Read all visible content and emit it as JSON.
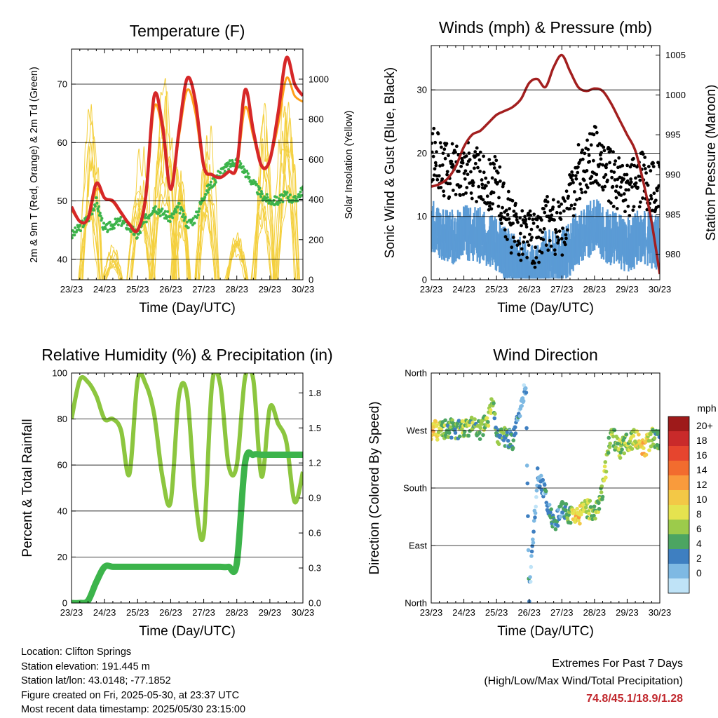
{
  "chart_data": [
    {
      "type": "line",
      "title": "Temperature (F)",
      "xlabel": "Time (Day/UTC)",
      "ylabel": "2m & 9m T (Red, Orange) & 2m Td (Green)",
      "y2label": "Solar Insolation (Yellow)",
      "xticks": [
        "23/23",
        "24/23",
        "25/23",
        "26/23",
        "27/23",
        "28/23",
        "29/23",
        "30/23"
      ],
      "x": [
        0,
        0.25,
        0.5,
        0.75,
        1,
        1.25,
        1.5,
        1.75,
        2,
        2.25,
        2.5,
        2.75,
        3,
        3.25,
        3.5,
        3.75,
        4,
        4.25,
        4.5,
        4.75,
        5,
        5.25,
        5.5,
        5.75,
        6,
        6.25,
        6.5,
        6.75,
        7
      ],
      "ylim": [
        36.5,
        76
      ],
      "yticks": [
        40,
        50,
        60,
        70
      ],
      "y2lim": [
        0,
        1150
      ],
      "y2ticks": [
        0,
        200,
        400,
        600,
        800,
        1000
      ],
      "grid": true,
      "series": [
        {
          "name": "2m T",
          "color": "#d62728",
          "values": [
            49,
            46.5,
            47,
            53,
            50.5,
            50,
            48,
            46,
            45,
            51,
            68,
            63,
            52,
            62,
            71,
            67,
            56,
            54.5,
            54,
            55,
            56,
            69,
            62,
            56,
            57,
            65,
            74.5,
            70,
            68
          ]
        },
        {
          "name": "9m T",
          "color": "#ff9f1a",
          "values": [
            48.5,
            46.5,
            46.8,
            52,
            50.5,
            49.8,
            47.8,
            46.2,
            45,
            50.5,
            66,
            62,
            52,
            61,
            69,
            65,
            55.5,
            54.5,
            54,
            55,
            55.5,
            66,
            61,
            56,
            57,
            63,
            71,
            68,
            67
          ]
        },
        {
          "name": "2m Td",
          "color": "#3cb44b",
          "values": [
            44,
            45.5,
            47,
            50,
            45,
            46,
            46.5,
            45.5,
            44,
            47,
            49,
            48,
            47,
            49,
            46,
            47,
            51,
            53,
            55,
            56,
            57,
            55,
            53,
            51,
            50,
            50,
            51,
            50,
            52
          ]
        },
        {
          "name": "Solar Insolation",
          "color": "#f4d03f",
          "axis": "right",
          "days": [
            [
              0,
              60,
              0
            ],
            [
              0.57,
              1040,
              0.6
            ],
            [
              1.25,
              200,
              0.5
            ],
            [
              2.1,
              900,
              0.7
            ],
            [
              2.8,
              1060,
              0.75
            ],
            [
              3.3,
              700,
              0.5
            ],
            [
              4.1,
              850,
              0.6
            ],
            [
              5.0,
              250,
              0.6
            ],
            [
              5.8,
              1000,
              0.6
            ],
            [
              6.5,
              1000,
              0.65
            ]
          ]
        }
      ]
    },
    {
      "type": "scatter",
      "title": "Winds (mph) & Pressure (mb)",
      "xlabel": "Time (Day/UTC)",
      "ylabel": "Sonic Wind & Gust (Blue, Black)",
      "y2label": "Station Pressure (Maroon)",
      "xticks": [
        "23/23",
        "24/23",
        "25/23",
        "26/23",
        "27/23",
        "28/23",
        "29/23",
        "30/23"
      ],
      "ylim": [
        0,
        37
      ],
      "yticks": [
        0,
        10,
        20,
        30
      ],
      "y2lim": [
        976.8,
        1006.2
      ],
      "y2ticks": [
        980,
        985,
        990,
        995,
        1000,
        1005
      ],
      "grid": true,
      "series": [
        {
          "name": "Wind",
          "color": "#5b9bd5",
          "x": [
            0,
            0.5,
            1,
            1.5,
            2,
            2.5,
            3,
            3.25,
            3.5,
            4,
            4.5,
            5,
            5.5,
            6,
            6.5,
            7
          ],
          "values": [
            10,
            8,
            9,
            8.5,
            7,
            4.5,
            3,
            2.5,
            5,
            5,
            8,
            10,
            8,
            7,
            8.5,
            7
          ]
        },
        {
          "name": "Gust",
          "color": "#000000",
          "x": [
            0,
            0.5,
            1,
            1.5,
            2,
            2.5,
            3,
            3.25,
            3.5,
            4,
            4.5,
            5,
            5.5,
            6,
            6.5,
            7
          ],
          "values": [
            20,
            17,
            18,
            16,
            15,
            8,
            7,
            6,
            9,
            8,
            17,
            20,
            16,
            14,
            16,
            14
          ]
        },
        {
          "name": "Pressure",
          "color": "#a31f1f",
          "axis": "right",
          "x": [
            0,
            0.25,
            0.5,
            0.75,
            1,
            1.25,
            1.5,
            1.75,
            2,
            2.25,
            2.5,
            2.75,
            3,
            3.25,
            3.5,
            3.75,
            4,
            4.25,
            4.5,
            4.75,
            5,
            5.25,
            5.5,
            5.75,
            6,
            6.25,
            6.5,
            6.75,
            7
          ],
          "values": [
            988.5,
            988.8,
            989.5,
            991,
            993.5,
            995,
            995.5,
            996.5,
            997.5,
            998,
            998.5,
            999.5,
            1001.5,
            1002,
            1001,
            1003.5,
            1005,
            1003,
            1001,
            1000.5,
            1000.8,
            1000.5,
            999,
            997,
            995,
            993,
            989,
            984,
            977.5
          ]
        }
      ]
    },
    {
      "type": "line",
      "title": "Relative Humidity (%) & Precipitation (in)",
      "xlabel": "Time (Day/UTC)",
      "ylabel": "Percent & Total Rainfall",
      "xticks": [
        "23/23",
        "24/23",
        "25/23",
        "26/23",
        "27/23",
        "28/23",
        "29/23",
        "30/23"
      ],
      "x": [
        0,
        0.25,
        0.5,
        0.75,
        1,
        1.25,
        1.5,
        1.75,
        2,
        2.25,
        2.5,
        2.75,
        3,
        3.25,
        3.5,
        3.75,
        4,
        4.25,
        4.5,
        4.75,
        5,
        5.25,
        5.5,
        5.75,
        6,
        6.25,
        6.5,
        6.75,
        7
      ],
      "ylim": [
        0,
        100
      ],
      "yticks": [
        0,
        20,
        40,
        60,
        80,
        100
      ],
      "y2lim": [
        0,
        1.97
      ],
      "y2ticks": [
        0,
        0.3,
        0.6,
        0.9,
        1.2,
        1.5,
        1.8
      ],
      "grid": true,
      "series": [
        {
          "name": "Relative Humidity",
          "color": "#8cc63f",
          "values": [
            80,
            97,
            96,
            90,
            80,
            80,
            75,
            56,
            97,
            95,
            82,
            55,
            44,
            90,
            90,
            45,
            30,
            95,
            95,
            60,
            60,
            98,
            97,
            55,
            85,
            78,
            70,
            44,
            57
          ]
        },
        {
          "name": "Total Precipitation",
          "color": "#3cb44b",
          "axis": "right",
          "values": [
            0,
            0,
            0.02,
            0.18,
            0.31,
            0.31,
            0.31,
            0.31,
            0.31,
            0.31,
            0.31,
            0.31,
            0.31,
            0.31,
            0.31,
            0.31,
            0.31,
            0.31,
            0.31,
            0.31,
            0.34,
            1.2,
            1.27,
            1.27,
            1.27,
            1.27,
            1.27,
            1.27,
            1.27
          ]
        }
      ]
    },
    {
      "type": "scatter",
      "title": "Wind Direction",
      "xlabel": "Time (Day/UTC)",
      "ylabel": "Direction (Colored By Speed)",
      "xticks": [
        "23/23",
        "24/23",
        "25/23",
        "26/23",
        "27/23",
        "28/23",
        "29/23",
        "30/23"
      ],
      "yticks": [
        "North",
        "East",
        "South",
        "West",
        "North"
      ],
      "ylim": [
        0,
        360
      ],
      "grid": true,
      "x": [
        0,
        0.25,
        0.5,
        0.75,
        1,
        1.25,
        1.5,
        1.75,
        1.9,
        2,
        2.25,
        2.5,
        2.75,
        2.9,
        3,
        3.25,
        3.5,
        3.75,
        4,
        4.25,
        4.5,
        4.75,
        5,
        5.25,
        5.5,
        5.75,
        6,
        6.25,
        6.5,
        6.75,
        7
      ],
      "values": [
        270,
        270,
        275,
        272,
        272,
        278,
        270,
        285,
        320,
        260,
        260,
        255,
        300,
        345,
        10,
        200,
        170,
        120,
        145,
        140,
        135,
        150,
        140,
        175,
        270,
        240,
        250,
        260,
        240,
        260,
        255
      ],
      "speeds": [
        14,
        10,
        8,
        7,
        9,
        8,
        8,
        10,
        9,
        6,
        7,
        5,
        4,
        3,
        4,
        3,
        4,
        6,
        5,
        8,
        14,
        10,
        8,
        10,
        9,
        8,
        8,
        10,
        14,
        8,
        7
      ],
      "colorbar": {
        "title": "mph",
        "labels": [
          "20+",
          "18",
          "16",
          "14",
          "12",
          "10",
          "8",
          "6",
          "4",
          "2",
          "0"
        ],
        "colors": [
          "#9e1a1a",
          "#c92a2a",
          "#e6452e",
          "#f26c2e",
          "#f99b3c",
          "#f3c846",
          "#e5e34f",
          "#9ccb4b",
          "#4ca562",
          "#3e7fc1",
          "#7eb9e3",
          "#bfe3f7"
        ]
      }
    }
  ],
  "info": {
    "location": "Location: Clifton Springs",
    "elevation": "Station elevation: 191.445 m",
    "latlon": "Station lat/lon: 43.0148; -77.1852",
    "created": "Figure created on Fri, 2025-05-30, at 23:37 UTC",
    "recent": "Most recent data timestamp: 2025/05/30 23:15:00"
  },
  "extremes": {
    "title": "Extremes For Past 7 Days",
    "subtitle": "(High/Low/Max Wind/Total Precipitation)",
    "values": "74.8/45.1/18.9/1.28"
  }
}
